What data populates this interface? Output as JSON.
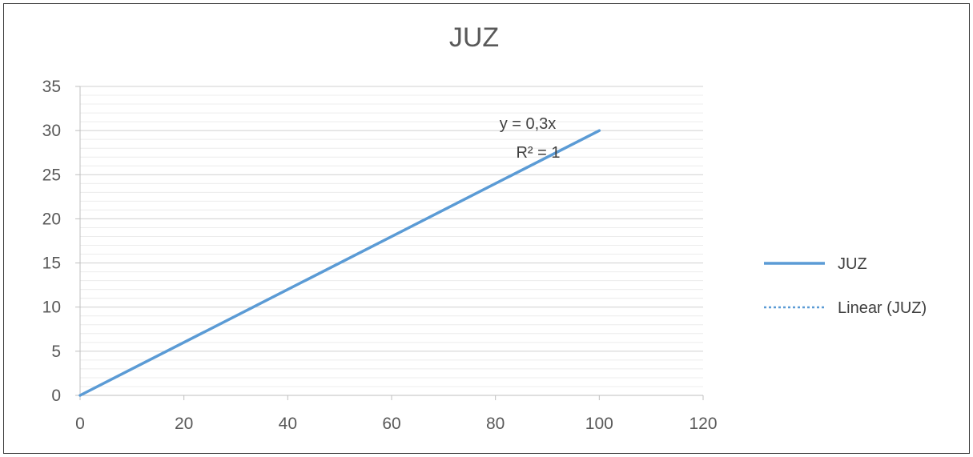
{
  "chart_data": {
    "type": "line",
    "title": "JUZ",
    "xlabel": "",
    "ylabel": "",
    "xlim": [
      0,
      120
    ],
    "ylim": [
      0,
      35
    ],
    "xticks": [
      "0",
      "20",
      "40",
      "60",
      "80",
      "100",
      "120"
    ],
    "yticks": [
      "0",
      "5",
      "10",
      "15",
      "20",
      "25",
      "30",
      "35"
    ],
    "grid": true,
    "legend_position": "right",
    "series": [
      {
        "name": "JUZ",
        "color": "#5b9bd5",
        "style": "solid",
        "x": [
          0,
          100
        ],
        "y": [
          0,
          30
        ]
      },
      {
        "name": "Linear (JUZ)",
        "color": "#5b9bd5",
        "style": "dotted",
        "x": [
          0,
          100
        ],
        "y": [
          0,
          30
        ]
      }
    ],
    "trendline_equation": "y = 0,3x",
    "trendline_r2": "R² = 1"
  }
}
